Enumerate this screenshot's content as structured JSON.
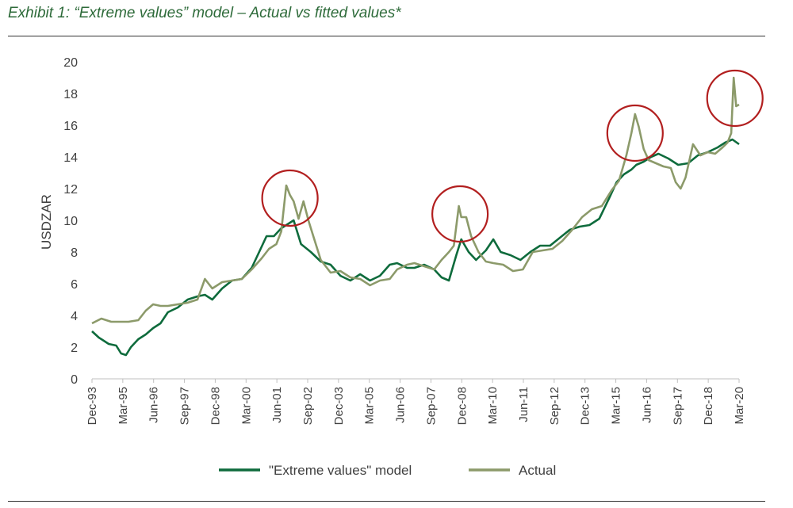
{
  "title": "Exhibit 1: “Extreme values” model – Actual vs fitted values*",
  "chart_data": {
    "type": "line",
    "ylabel": "USDZAR",
    "xlabel": "",
    "ylim": [
      0,
      20
    ],
    "yticks": [
      0,
      2,
      4,
      6,
      8,
      10,
      12,
      14,
      16,
      18,
      20
    ],
    "xticks": [
      "Dec-93",
      "Mar-95",
      "Jun-96",
      "Sep-97",
      "Dec-98",
      "Mar-00",
      "Jun-01",
      "Sep-02",
      "Dec-03",
      "Mar-05",
      "Jun-06",
      "Sep-07",
      "Dec-08",
      "Mar-10",
      "Jun-11",
      "Sep-12",
      "Dec-13",
      "Mar-15",
      "Jun-16",
      "Sep-17",
      "Dec-18",
      "Mar-20"
    ],
    "xrange": [
      1993.92,
      2020.17
    ],
    "series": [
      {
        "name": "\"Extreme values\" model",
        "color": "#0e6b3c",
        "x": [
          1993.92,
          1994.2,
          1994.6,
          1994.9,
          1995.1,
          1995.3,
          1995.5,
          1995.8,
          1996.1,
          1996.4,
          1996.7,
          1997.0,
          1997.4,
          1997.8,
          1998.2,
          1998.5,
          1998.8,
          1999.2,
          1999.6,
          2000.0,
          2000.4,
          2000.7,
          2001.0,
          2001.3,
          2001.6,
          2001.9,
          2002.1,
          2002.4,
          2002.8,
          2003.2,
          2003.6,
          2004.0,
          2004.4,
          2004.8,
          2005.2,
          2005.6,
          2006.0,
          2006.3,
          2006.7,
          2007.0,
          2007.4,
          2007.8,
          2008.1,
          2008.4,
          2008.7,
          2008.9,
          2009.2,
          2009.5,
          2009.9,
          2010.2,
          2010.5,
          2010.9,
          2011.3,
          2011.7,
          2012.1,
          2012.5,
          2012.9,
          2013.3,
          2013.7,
          2014.1,
          2014.5,
          2014.9,
          2015.2,
          2015.5,
          2015.8,
          2016.0,
          2016.3,
          2016.6,
          2016.9,
          2017.3,
          2017.7,
          2018.1,
          2018.5,
          2018.9,
          2019.3,
          2019.6,
          2019.9,
          2020.17
        ],
        "values": [
          3.0,
          2.6,
          2.2,
          2.1,
          1.6,
          1.5,
          2.0,
          2.5,
          2.8,
          3.2,
          3.5,
          4.2,
          4.5,
          5.0,
          5.2,
          5.3,
          5.0,
          5.7,
          6.2,
          6.3,
          7.0,
          8.0,
          9.0,
          9.0,
          9.5,
          9.8,
          10.0,
          8.5,
          8.0,
          7.4,
          7.2,
          6.5,
          6.2,
          6.6,
          6.2,
          6.5,
          7.2,
          7.3,
          7.0,
          7.0,
          7.2,
          6.9,
          6.4,
          6.2,
          7.8,
          8.8,
          8.0,
          7.5,
          8.1,
          8.8,
          8.0,
          7.8,
          7.5,
          8.0,
          8.4,
          8.4,
          8.9,
          9.4,
          9.6,
          9.7,
          10.1,
          11.4,
          12.4,
          12.9,
          13.2,
          13.5,
          13.7,
          14.0,
          14.2,
          13.9,
          13.5,
          13.6,
          14.1,
          14.3,
          14.6,
          14.9,
          15.1,
          14.8
        ]
      },
      {
        "name": "Actual",
        "color": "#8c9a6a",
        "x": [
          1993.92,
          1994.3,
          1994.7,
          1995.0,
          1995.4,
          1995.8,
          1996.1,
          1996.4,
          1996.7,
          1997.0,
          1997.4,
          1997.8,
          1998.2,
          1998.5,
          1998.8,
          1999.2,
          1999.6,
          2000.0,
          2000.4,
          2000.8,
          2001.1,
          2001.4,
          2001.6,
          2001.8,
          2001.95,
          2002.1,
          2002.3,
          2002.5,
          2002.7,
          2002.9,
          2003.2,
          2003.6,
          2004.0,
          2004.4,
          2004.8,
          2005.2,
          2005.6,
          2006.0,
          2006.3,
          2006.7,
          2007.0,
          2007.4,
          2007.8,
          2008.1,
          2008.4,
          2008.6,
          2008.8,
          2008.9,
          2009.1,
          2009.3,
          2009.6,
          2009.9,
          2010.2,
          2010.6,
          2011.0,
          2011.4,
          2011.8,
          2012.2,
          2012.6,
          2013.0,
          2013.4,
          2013.8,
          2014.2,
          2014.6,
          2015.0,
          2015.3,
          2015.6,
          2015.8,
          2015.95,
          2016.1,
          2016.3,
          2016.5,
          2016.8,
          2017.1,
          2017.4,
          2017.6,
          2017.8,
          2018.0,
          2018.3,
          2018.6,
          2018.9,
          2019.2,
          2019.5,
          2019.7,
          2019.85,
          2019.95,
          2020.05,
          2020.17
        ],
        "values": [
          3.5,
          3.8,
          3.6,
          3.6,
          3.6,
          3.7,
          4.3,
          4.7,
          4.6,
          4.6,
          4.7,
          4.8,
          5.0,
          6.3,
          5.7,
          6.1,
          6.2,
          6.3,
          6.9,
          7.6,
          8.2,
          8.5,
          9.3,
          12.2,
          11.6,
          11.2,
          10.1,
          11.2,
          10.0,
          9.0,
          7.5,
          6.7,
          6.8,
          6.4,
          6.3,
          5.9,
          6.2,
          6.3,
          6.9,
          7.2,
          7.3,
          7.1,
          6.9,
          7.5,
          8.0,
          8.4,
          10.9,
          10.2,
          10.2,
          9.0,
          8.0,
          7.4,
          7.3,
          7.2,
          6.8,
          6.9,
          8.0,
          8.1,
          8.2,
          8.7,
          9.4,
          10.2,
          10.7,
          10.9,
          11.9,
          12.5,
          14.1,
          15.5,
          16.7,
          15.9,
          14.5,
          13.8,
          13.6,
          13.4,
          13.3,
          12.4,
          12.0,
          12.7,
          14.8,
          14.1,
          14.3,
          14.2,
          14.6,
          14.9,
          15.5,
          19.0,
          17.2,
          17.3
        ]
      }
    ],
    "legend": {
      "position": "bottom",
      "entries": [
        "\"Extreme values\" model",
        "Actual"
      ]
    },
    "annotations": [
      {
        "kind": "circle",
        "x": 2001.95,
        "y": 11.4
      },
      {
        "kind": "circle",
        "x": 2008.85,
        "y": 10.4
      },
      {
        "kind": "circle",
        "x": 2015.95,
        "y": 15.5
      },
      {
        "kind": "circle",
        "x": 2020.0,
        "y": 17.7
      }
    ],
    "annotation_color": "#b21f1f"
  }
}
